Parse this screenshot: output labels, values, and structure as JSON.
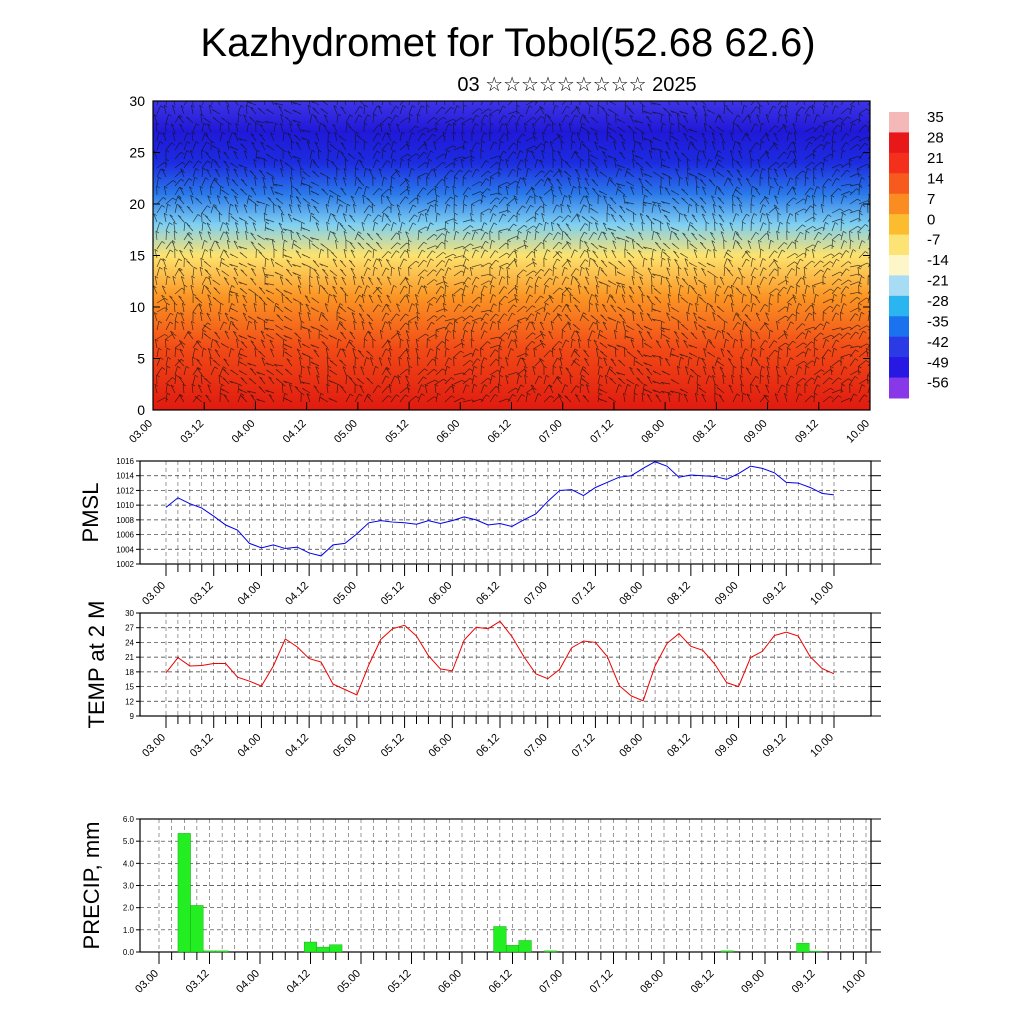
{
  "title": "Kazhydromet for Tobol(52.68 62.6)",
  "subtitle": "03 ☆☆☆☆☆☆☆☆☆ 2025",
  "time_labels": [
    "03.00",
    "03.12",
    "04.00",
    "04.12",
    "05.00",
    "05.12",
    "06.00",
    "06.12",
    "07.00",
    "07.12",
    "08.00",
    "08.12",
    "09.00",
    "09.12",
    "10.00"
  ],
  "colorbar": {
    "labels": [
      "35",
      "28",
      "21",
      "14",
      "7",
      "0",
      "-7",
      "-14",
      "-21",
      "-28",
      "-35",
      "-42",
      "-49",
      "-56"
    ],
    "stops": [
      "#f4b8b8",
      "#e8181a",
      "#f4301c",
      "#f65a1c",
      "#fa8c22",
      "#fcbc30",
      "#fde274",
      "#fdf6c8",
      "#a8dcf4",
      "#2ab4f0",
      "#1a72ee",
      "#2a3ae4",
      "#2818e4",
      "#8838e8"
    ]
  },
  "chart_data": [
    {
      "type": "heatmap",
      "ylim": [
        0,
        30
      ],
      "yticks": [
        "0",
        "5",
        "10",
        "15",
        "20",
        "25",
        "30"
      ],
      "xlabels_ref": "time_labels",
      "description_layers": [
        {
          "level": 0,
          "color": "#e01a10"
        },
        {
          "level": 6,
          "color": "#f24a16"
        },
        {
          "level": 11,
          "color": "#fb9524"
        },
        {
          "level": 15,
          "color": "#fde36e"
        },
        {
          "level": 18,
          "color": "#7fd0f2"
        },
        {
          "level": 21,
          "color": "#2a78ea"
        },
        {
          "level": 24,
          "color": "#1c2ce0"
        },
        {
          "level": 27,
          "color": "#2018d8"
        },
        {
          "level": 30,
          "color": "#3e34e6"
        }
      ]
    },
    {
      "type": "line",
      "ylabel": "PMSL",
      "ylim": [
        1002,
        1016
      ],
      "yticks": [
        "1002",
        "1004",
        "1006",
        "1008",
        "1010",
        "1012",
        "1014",
        "1016"
      ],
      "color": "#0000ee",
      "x": [
        0,
        1,
        2,
        3,
        4,
        5,
        6,
        7,
        8,
        9,
        10,
        11,
        12,
        13,
        14,
        15,
        16,
        17,
        18,
        19,
        20,
        21,
        22,
        23,
        24,
        25,
        26,
        27,
        28,
        29,
        30,
        31,
        32,
        33,
        34,
        35,
        36,
        37,
        38,
        39,
        40,
        41,
        42,
        43,
        44,
        45,
        46,
        47,
        48,
        49,
        50,
        51,
        52,
        53,
        54,
        55,
        56
      ],
      "values": [
        1009.7,
        1011.0,
        1010.2,
        1009.6,
        1008.5,
        1007.3,
        1006.6,
        1004.8,
        1004.2,
        1004.6,
        1004.1,
        1004.3,
        1003.5,
        1003.1,
        1004.6,
        1004.8,
        1006.1,
        1007.6,
        1007.9,
        1007.7,
        1007.6,
        1007.4,
        1007.9,
        1007.5,
        1007.9,
        1008.4,
        1008.0,
        1007.3,
        1007.5,
        1007.1,
        1008.0,
        1008.8,
        1010.5,
        1012.0,
        1012.1,
        1011.3,
        1012.4,
        1013.1,
        1013.8,
        1014.0,
        1015.0,
        1015.9,
        1015.3,
        1013.8,
        1014.1,
        1014.0,
        1013.9,
        1013.5,
        1014.3,
        1015.3,
        1015.0,
        1014.4,
        1013.1,
        1013.0,
        1012.4,
        1011.6,
        1011.4
      ]
    },
    {
      "type": "line",
      "ylabel": "TEMP at 2 M",
      "ylim": [
        9,
        30
      ],
      "yticks": [
        "9",
        "12",
        "15",
        "18",
        "21",
        "24",
        "27",
        "30"
      ],
      "color": "#ee0000",
      "x": [
        0,
        1,
        2,
        3,
        4,
        5,
        6,
        7,
        8,
        9,
        10,
        11,
        12,
        13,
        14,
        15,
        16,
        17,
        18,
        19,
        20,
        21,
        22,
        23,
        24,
        25,
        26,
        27,
        28,
        29,
        30,
        31,
        32,
        33,
        34,
        35,
        36,
        37,
        38,
        39,
        40,
        41,
        42,
        43,
        44,
        45,
        46,
        47,
        48,
        49,
        50,
        51,
        52,
        53,
        54,
        55,
        56
      ],
      "values": [
        17.8,
        20.9,
        19.2,
        19.3,
        19.7,
        19.7,
        16.9,
        16.1,
        15.1,
        19.2,
        24.7,
        23.1,
        20.7,
        20.0,
        15.5,
        14.4,
        13.3,
        19.4,
        24.6,
        26.8,
        27.5,
        25.3,
        21.3,
        18.6,
        18.2,
        24.5,
        27.1,
        26.8,
        28.3,
        25.2,
        21.1,
        17.6,
        16.6,
        18.5,
        22.9,
        24.3,
        24.0,
        21.1,
        15.2,
        13.1,
        12.1,
        19.2,
        23.8,
        25.8,
        23.2,
        22.4,
        19.6,
        15.8,
        15.0,
        20.9,
        22.2,
        25.4,
        26.1,
        25.3,
        21.1,
        18.7,
        17.6
      ]
    },
    {
      "type": "bar",
      "ylabel": "PRECIP, mm",
      "ylim": [
        0,
        6
      ],
      "yticks": [
        "0.0",
        "1.0",
        "2.0",
        "3.0",
        "4.0",
        "5.0",
        "6.0"
      ],
      "color": "#22ee22",
      "x": [
        2,
        3,
        4,
        5,
        12,
        13,
        14,
        27,
        28,
        29,
        31,
        45,
        51,
        52
      ],
      "values": [
        5.35,
        2.1,
        0.05,
        0.05,
        0.45,
        0.22,
        0.33,
        1.15,
        0.3,
        0.52,
        0.05,
        0.05,
        0.4,
        0.04
      ]
    }
  ]
}
